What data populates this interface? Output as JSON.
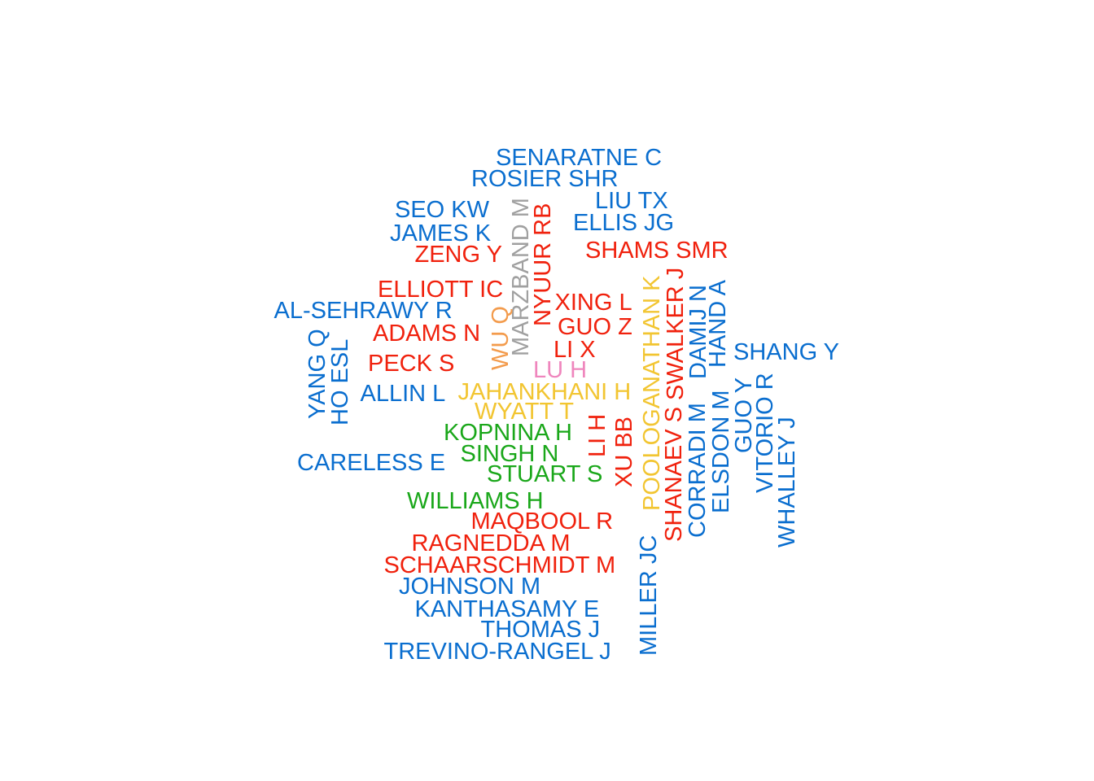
{
  "palette": {
    "blue": "#0a6ecf",
    "red": "#f0210d",
    "yellow": "#f2c531",
    "green": "#1aa71a",
    "gray": "#a0a0a0",
    "orange": "#f39b4c",
    "pink": "#ef86bd"
  },
  "words": [
    {
      "text": "SENARATNE C",
      "color": "blue"
    },
    {
      "text": "ROSIER SHR",
      "color": "blue"
    },
    {
      "text": "LIU TX",
      "color": "blue"
    },
    {
      "text": "SEO KW",
      "color": "blue"
    },
    {
      "text": "ELLIS JG",
      "color": "blue"
    },
    {
      "text": "JAMES K",
      "color": "blue"
    },
    {
      "text": "ZENG Y",
      "color": "red"
    },
    {
      "text": "SHAMS SMR",
      "color": "red"
    },
    {
      "text": "MARZBAND M",
      "color": "gray"
    },
    {
      "text": "NYUUR RB",
      "color": "red"
    },
    {
      "text": "ELLIOTT IC",
      "color": "red"
    },
    {
      "text": "XING L",
      "color": "red"
    },
    {
      "text": "AL-SEHRAWY R",
      "color": "blue"
    },
    {
      "text": "WU Q",
      "color": "orange"
    },
    {
      "text": "GUO Z",
      "color": "red"
    },
    {
      "text": "ADAMS N",
      "color": "red"
    },
    {
      "text": "LI X",
      "color": "red"
    },
    {
      "text": "PECK S",
      "color": "red"
    },
    {
      "text": "LU H",
      "color": "pink"
    },
    {
      "text": "SHANG Y",
      "color": "blue"
    },
    {
      "text": "YANG Q",
      "color": "blue"
    },
    {
      "text": "HO ESL",
      "color": "blue"
    },
    {
      "text": "ALLIN L",
      "color": "blue"
    },
    {
      "text": "JAHANKHANI H",
      "color": "yellow"
    },
    {
      "text": "WYATT T",
      "color": "yellow"
    },
    {
      "text": "KOPNINA H",
      "color": "green"
    },
    {
      "text": "SINGH N",
      "color": "green"
    },
    {
      "text": "STUART S",
      "color": "green"
    },
    {
      "text": "CARELESS E",
      "color": "blue"
    },
    {
      "text": "LI H",
      "color": "red"
    },
    {
      "text": "XU BB",
      "color": "red"
    },
    {
      "text": "POOLOGANATHAN K",
      "color": "yellow"
    },
    {
      "text": "SWALKER J",
      "color": "red"
    },
    {
      "text": "SHANAEV S",
      "color": "red"
    },
    {
      "text": "DAMIJ N",
      "color": "blue"
    },
    {
      "text": "CORRADI M",
      "color": "blue"
    },
    {
      "text": "HAND A",
      "color": "blue"
    },
    {
      "text": "ELSDON M",
      "color": "blue"
    },
    {
      "text": "GUO Y",
      "color": "blue"
    },
    {
      "text": "VITORIO R",
      "color": "blue"
    },
    {
      "text": "WHALLEY J",
      "color": "blue"
    },
    {
      "text": "WILLIAMS H",
      "color": "green"
    },
    {
      "text": "MAQBOOL R",
      "color": "red"
    },
    {
      "text": "RAGNEDDA M",
      "color": "red"
    },
    {
      "text": "SCHAARSCHMIDT M",
      "color": "red"
    },
    {
      "text": "JOHNSON M",
      "color": "blue"
    },
    {
      "text": "MILLER JC",
      "color": "blue"
    },
    {
      "text": "KANTHASAMY E",
      "color": "blue"
    },
    {
      "text": "THOMAS J",
      "color": "blue"
    },
    {
      "text": "TREVINO-RANGEL J",
      "color": "blue"
    }
  ]
}
